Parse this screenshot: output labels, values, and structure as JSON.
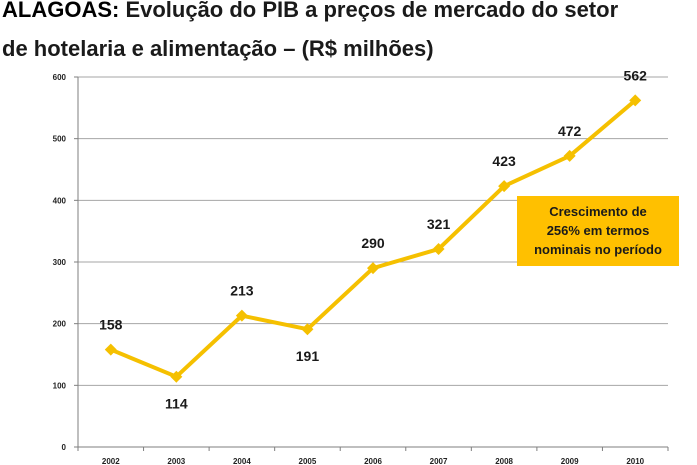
{
  "title": {
    "highlight": "ALAGOAS:",
    "line1_rest": " Evolução do PIB a preços de mercado do setor",
    "line2": "de hotelaria e alimentação – (R$ milhões)"
  },
  "annotation": {
    "line1": "Crescimento de",
    "line2": "256% em termos",
    "line3": "nominais no período"
  },
  "colors": {
    "series": "#F5C000",
    "annotation_bg": "#FFC000",
    "grid": "#a6a6a6"
  },
  "chart_data": {
    "type": "line",
    "categories": [
      "2002",
      "2003",
      "2004",
      "2005",
      "2006",
      "2007",
      "2008",
      "2009",
      "2010"
    ],
    "series": [
      {
        "values": [
          158,
          114,
          213,
          191,
          290,
          321,
          423,
          472,
          562
        ]
      }
    ],
    "data_labels": [
      "158",
      "114",
      "213",
      "191",
      "290",
      "321",
      "423",
      "472",
      "562"
    ],
    "y_ticks": [
      0,
      100,
      200,
      300,
      400,
      500,
      600
    ],
    "ylim": [
      0,
      600
    ],
    "grid": true,
    "marker": "diamond"
  }
}
